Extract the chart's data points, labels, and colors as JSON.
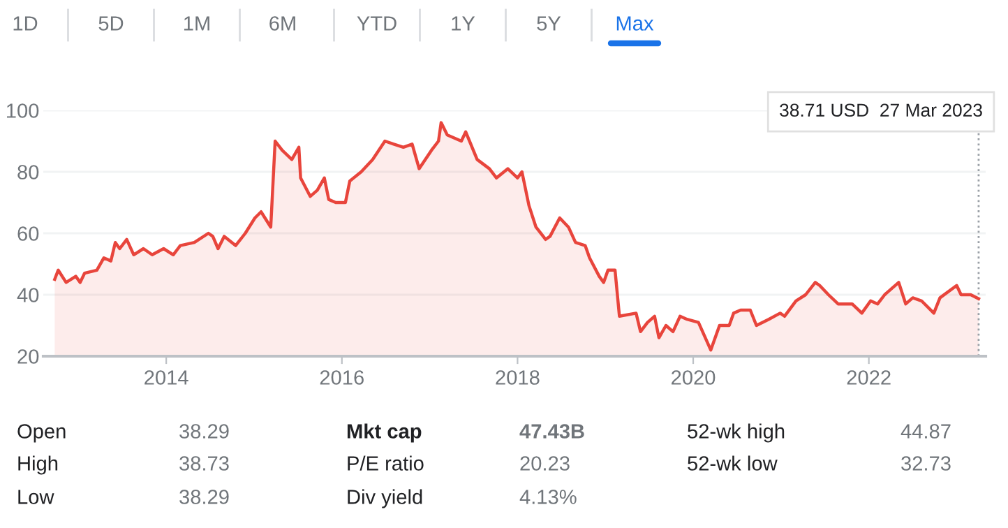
{
  "chart_data": [
    {
      "type": "other",
      "annotations": [
        "1D",
        "5D",
        "1M",
        "6M",
        "YTD",
        "1Y",
        "5Y",
        "Max"
      ]
    },
    {
      "type": "area",
      "color": "#e8453c",
      "grid": "y",
      "ref_lines": [
        {
          "axis": "x",
          "value": 2023.25,
          "color": "#9aa0a6",
          "line_style": "dotted"
        }
      ],
      "x": [
        2012.73,
        2012.77,
        2012.86,
        2012.97,
        2013.02,
        2013.07,
        2013.21,
        2013.29,
        2013.37,
        2013.42,
        2013.47,
        2013.55,
        2013.63,
        2013.74,
        2013.84,
        2013.97,
        2014.08,
        2014.16,
        2014.32,
        2014.48,
        2014.53,
        2014.59,
        2014.66,
        2014.79,
        2014.9,
        2015.01,
        2015.08,
        2015.19,
        2015.24,
        2015.32,
        2015.43,
        2015.51,
        2015.53,
        2015.64,
        2015.72,
        2015.8,
        2015.85,
        2015.93,
        2016.04,
        2016.09,
        2016.22,
        2016.35,
        2016.49,
        2016.59,
        2016.7,
        2016.8,
        2016.88,
        2017.02,
        2017.1,
        2017.13,
        2017.2,
        2017.36,
        2017.41,
        2017.54,
        2017.68,
        2017.76,
        2017.89,
        2018.0,
        2018.05,
        2018.13,
        2018.21,
        2018.32,
        2018.37,
        2018.48,
        2018.58,
        2018.66,
        2018.77,
        2018.82,
        2018.93,
        2018.98,
        2019.03,
        2019.11,
        2019.16,
        2019.35,
        2019.4,
        2019.48,
        2019.56,
        2019.61,
        2019.69,
        2019.77,
        2019.85,
        2019.93,
        2020.06,
        2020.2,
        2020.3,
        2020.41,
        2020.46,
        2020.54,
        2020.65,
        2020.72,
        2020.86,
        2020.99,
        2021.04,
        2021.17,
        2021.28,
        2021.39,
        2021.44,
        2021.54,
        2021.65,
        2021.81,
        2021.92,
        2022.02,
        2022.1,
        2022.18,
        2022.26,
        2022.34,
        2022.42,
        2022.5,
        2022.6,
        2022.74,
        2022.81,
        2023.0,
        2023.05,
        2023.16,
        2023.25
      ],
      "values": [
        45,
        48,
        44,
        46,
        44,
        47,
        48,
        52,
        51,
        57,
        55,
        58,
        53,
        55,
        53,
        55,
        53,
        56,
        57,
        60,
        59,
        55,
        59,
        56,
        60,
        65,
        67,
        62,
        90,
        87,
        84,
        88,
        78,
        72,
        74,
        78,
        71,
        70,
        70,
        77,
        80,
        84,
        90,
        89,
        88,
        89,
        81,
        87,
        90,
        96,
        92,
        90,
        93,
        84,
        81,
        78,
        81,
        78,
        80,
        69,
        62,
        58,
        59,
        65,
        62,
        57,
        56,
        52,
        46,
        44,
        48,
        48,
        33,
        34,
        28,
        31,
        33,
        26,
        30,
        28,
        33,
        32,
        31,
        22,
        30,
        30,
        34,
        35,
        35,
        30,
        32,
        34,
        33,
        38,
        40,
        44,
        43,
        40,
        37,
        37,
        34,
        38,
        37,
        40,
        42,
        44,
        37,
        39,
        38,
        34,
        39,
        43,
        40,
        40,
        38.7
      ],
      "xlim": [
        2012.6,
        2023.33
      ],
      "xticks": [
        2014,
        2016,
        2018,
        2020,
        2022
      ],
      "ylim": [
        20,
        100
      ],
      "yticks": [
        20,
        40,
        60,
        80,
        100
      ],
      "annotations": [
        "38.71 USD  27 Mar 2023"
      ]
    },
    {
      "type": "other",
      "annotations": [
        "Open",
        "38.29",
        "Mkt cap",
        "47.43B",
        "52-wk high",
        "44.87",
        "High",
        "38.73",
        "P/E ratio",
        "20.23",
        "52-wk low",
        "32.73",
        "Low",
        "38.29",
        "Div yield",
        "4.13%"
      ]
    }
  ]
}
